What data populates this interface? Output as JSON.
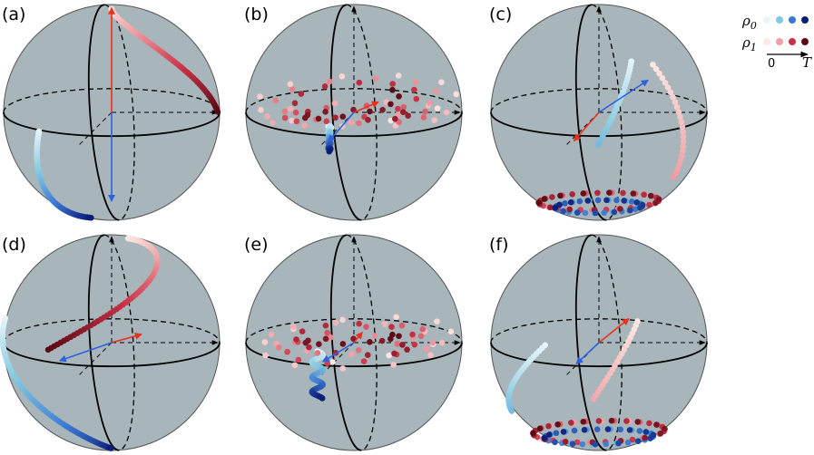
{
  "panels": [
    {
      "label": "(a)"
    },
    {
      "label": "(b)"
    },
    {
      "label": "(c)"
    },
    {
      "label": "(d)"
    },
    {
      "label": "(e)"
    },
    {
      "label": "(f)"
    }
  ],
  "legend": {
    "series": [
      {
        "symbol": "ρ",
        "subscript": "0"
      },
      {
        "symbol": "ρ",
        "subscript": "1"
      }
    ],
    "time_start": "0",
    "time_end": "T"
  }
}
